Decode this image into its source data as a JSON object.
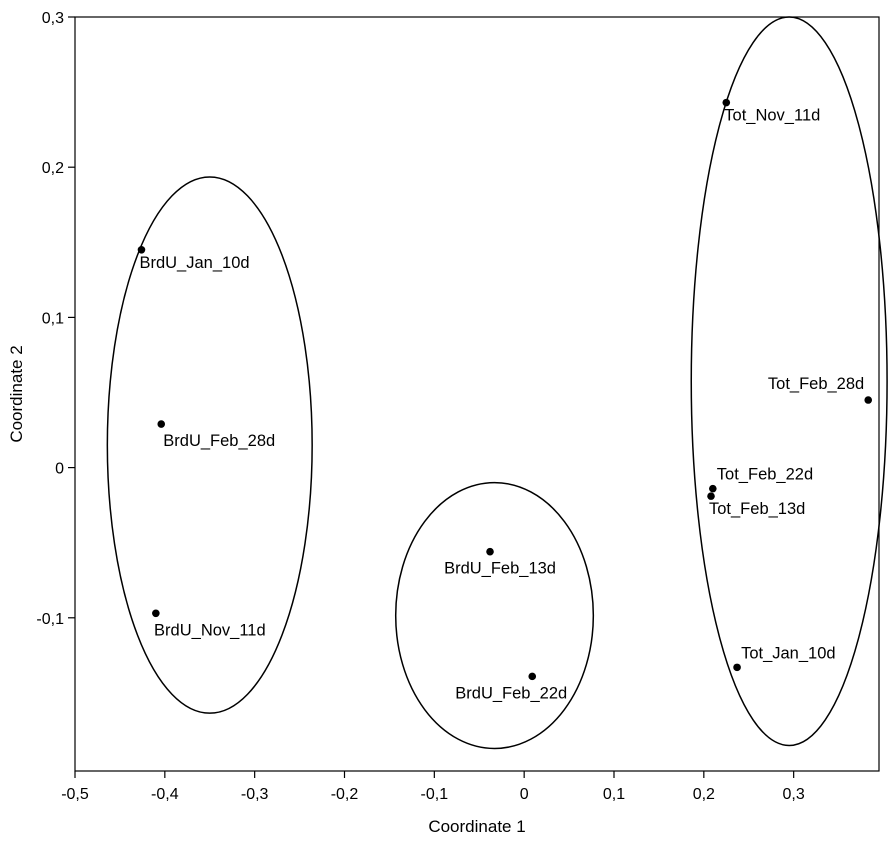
{
  "chart_data": {
    "type": "scatter",
    "xlabel": "Coordinate 1",
    "ylabel": "Coordinate 2",
    "xlim": [
      -0.5,
      0.395
    ],
    "ylim": [
      -0.202,
      0.3
    ],
    "x_ticks": [
      -0.5,
      -0.4,
      -0.3,
      -0.2,
      -0.1,
      0,
      0.1,
      0.2,
      0.3
    ],
    "x_tick_labels": [
      "-0,5",
      "-0,4",
      "-0,3",
      "-0,2",
      "-0,1",
      "0",
      "0,1",
      "0,2",
      "0,3"
    ],
    "y_ticks": [
      -0.1,
      0,
      0.1,
      0.2,
      0.3
    ],
    "y_tick_labels": [
      "-0,1",
      "0",
      "0,1",
      "0,2",
      "0,3"
    ],
    "grid": false,
    "points": [
      {
        "label": "BrdU_Jan_10d",
        "x": -0.426,
        "y": 0.145,
        "label_pos": "below-right"
      },
      {
        "label": "BrdU_Feb_28d",
        "x": -0.404,
        "y": 0.029,
        "label_pos": "below"
      },
      {
        "label": "BrdU_Nov_11d",
        "x": -0.41,
        "y": -0.097,
        "label_pos": "below"
      },
      {
        "label": "BrdU_Feb_13d",
        "x": -0.038,
        "y": -0.056,
        "label_pos": "below"
      },
      {
        "label": "BrdU_Feb_22d",
        "x": 0.009,
        "y": -0.139,
        "label_pos": "below-left"
      },
      {
        "label": "Tot_Nov_11d",
        "x": 0.225,
        "y": 0.243,
        "label_pos": "below-right"
      },
      {
        "label": "Tot_Feb_28d",
        "x": 0.383,
        "y": 0.045,
        "label_pos": "above-left"
      },
      {
        "label": "Tot_Feb_22d",
        "x": 0.21,
        "y": -0.014,
        "label_pos": "above-right"
      },
      {
        "label": "Tot_Feb_13d",
        "x": 0.208,
        "y": -0.019,
        "label_pos": "below-right"
      },
      {
        "label": "Tot_Jan_10d",
        "x": 0.237,
        "y": -0.133,
        "label_pos": "above-right"
      }
    ],
    "clusters": [
      {
        "cx": -0.35,
        "cy": 0.015,
        "rx": 0.114,
        "ry": 0.1785
      },
      {
        "cx": -0.033,
        "cy": -0.0985,
        "rx": 0.11,
        "ry": 0.0885
      },
      {
        "cx": 0.295,
        "cy": 0.0575,
        "rx": 0.109,
        "ry": 0.2425
      }
    ]
  }
}
